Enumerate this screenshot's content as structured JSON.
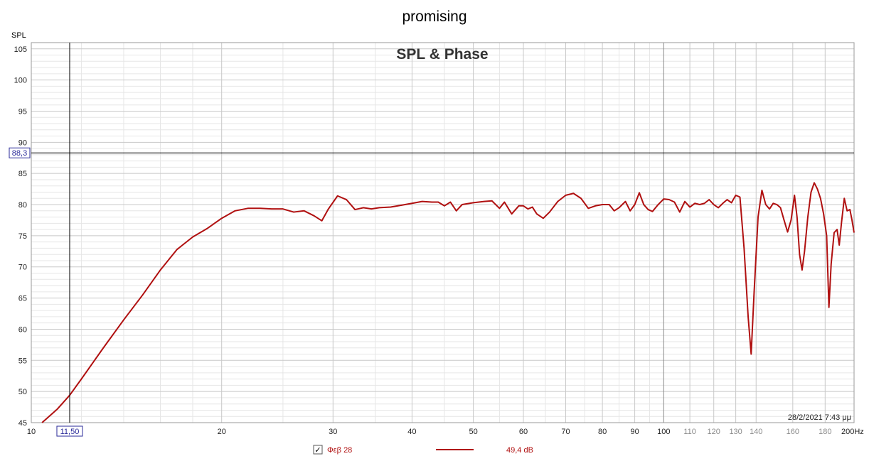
{
  "window_title": "promising",
  "plot_title": "SPL & Phase",
  "timestamp": "28/2/2021 7:43 μμ",
  "cursor": {
    "x_label": "11,50",
    "y_label": "88,3"
  },
  "legend": {
    "checked": true,
    "name": "Φεβ 28",
    "value": "49,4 dB",
    "color": "#b01010"
  },
  "colors": {
    "curve": "#b01010",
    "grid_major": "#c8c8c8",
    "grid_minor": "#e6e6e6",
    "frame": "#9a9a9a",
    "cursor": "#000000"
  },
  "chart_data": {
    "type": "line",
    "title": "SPL & Phase",
    "xlabel": "Hz",
    "ylabel": "SPL",
    "x_scale": "log",
    "xlim": [
      10,
      200
    ],
    "ylim": [
      45,
      106
    ],
    "grid": true,
    "x_ticks": [
      {
        "v": 10,
        "t": "10"
      },
      {
        "v": 20,
        "t": "20"
      },
      {
        "v": 30,
        "t": "30"
      },
      {
        "v": 40,
        "t": "40"
      },
      {
        "v": 50,
        "t": "50"
      },
      {
        "v": 60,
        "t": "60"
      },
      {
        "v": 70,
        "t": "70"
      },
      {
        "v": 80,
        "t": "80"
      },
      {
        "v": 90,
        "t": "90"
      },
      {
        "v": 100,
        "t": "100"
      },
      {
        "v": 110,
        "t": "110"
      },
      {
        "v": 120,
        "t": "120"
      },
      {
        "v": 130,
        "t": "130"
      },
      {
        "v": 140,
        "t": "140"
      },
      {
        "v": 160,
        "t": "160"
      },
      {
        "v": 180,
        "t": "180"
      },
      {
        "v": 200,
        "t": "200Hz"
      }
    ],
    "y_ticks": [
      45,
      50,
      55,
      60,
      65,
      70,
      75,
      80,
      85,
      90,
      95,
      100,
      105
    ],
    "series": [
      {
        "name": "Φεβ 28",
        "points": [
          [
            10.4,
            45.0
          ],
          [
            11.0,
            47.2
          ],
          [
            11.5,
            49.4
          ],
          [
            12.0,
            52.0
          ],
          [
            13.0,
            57.0
          ],
          [
            14.0,
            61.5
          ],
          [
            15.0,
            65.5
          ],
          [
            16.0,
            69.5
          ],
          [
            17.0,
            72.8
          ],
          [
            18.0,
            74.8
          ],
          [
            19.0,
            76.2
          ],
          [
            20.0,
            77.8
          ],
          [
            21.0,
            79.0
          ],
          [
            22.0,
            79.4
          ],
          [
            23.0,
            79.4
          ],
          [
            24.0,
            79.3
          ],
          [
            25.0,
            79.3
          ],
          [
            26.0,
            78.8
          ],
          [
            27.0,
            79.0
          ],
          [
            28.0,
            78.2
          ],
          [
            28.8,
            77.4
          ],
          [
            29.5,
            79.3
          ],
          [
            30.5,
            81.4
          ],
          [
            31.5,
            80.8
          ],
          [
            32.5,
            79.2
          ],
          [
            33.5,
            79.5
          ],
          [
            34.5,
            79.3
          ],
          [
            35.5,
            79.5
          ],
          [
            37.0,
            79.6
          ],
          [
            38.5,
            79.9
          ],
          [
            40.0,
            80.2
          ],
          [
            41.5,
            80.5
          ],
          [
            43.0,
            80.4
          ],
          [
            44.0,
            80.4
          ],
          [
            45.0,
            79.8
          ],
          [
            46.0,
            80.4
          ],
          [
            47.0,
            79.0
          ],
          [
            48.0,
            80.0
          ],
          [
            50.0,
            80.3
          ],
          [
            52.0,
            80.5
          ],
          [
            53.5,
            80.6
          ],
          [
            55.0,
            79.4
          ],
          [
            56.0,
            80.4
          ],
          [
            57.5,
            78.5
          ],
          [
            59.0,
            79.8
          ],
          [
            60.0,
            79.8
          ],
          [
            61.0,
            79.3
          ],
          [
            62.0,
            79.6
          ],
          [
            63.0,
            78.5
          ],
          [
            64.5,
            77.8
          ],
          [
            66.0,
            78.8
          ],
          [
            68.0,
            80.5
          ],
          [
            70.0,
            81.5
          ],
          [
            72.0,
            81.8
          ],
          [
            74.0,
            81.0
          ],
          [
            76.0,
            79.4
          ],
          [
            78.0,
            79.8
          ],
          [
            80.0,
            80.0
          ],
          [
            82.0,
            80.0
          ],
          [
            83.5,
            79.0
          ],
          [
            85.0,
            79.5
          ],
          [
            87.0,
            80.5
          ],
          [
            88.5,
            79.0
          ],
          [
            90.0,
            80.0
          ],
          [
            91.5,
            81.9
          ],
          [
            93.0,
            80.0
          ],
          [
            94.5,
            79.2
          ],
          [
            96.0,
            78.9
          ],
          [
            98.0,
            80.0
          ],
          [
            100.0,
            80.9
          ],
          [
            102.0,
            80.8
          ],
          [
            104.0,
            80.4
          ],
          [
            106.0,
            78.8
          ],
          [
            108.0,
            80.5
          ],
          [
            110.0,
            79.6
          ],
          [
            112.0,
            80.2
          ],
          [
            114.0,
            80.0
          ],
          [
            116.0,
            80.2
          ],
          [
            118.0,
            80.8
          ],
          [
            120.0,
            80.0
          ],
          [
            122.0,
            79.5
          ],
          [
            124.0,
            80.2
          ],
          [
            126.0,
            80.8
          ],
          [
            128.0,
            80.3
          ],
          [
            130.0,
            81.5
          ],
          [
            132.0,
            81.2
          ],
          [
            134.0,
            73.0
          ],
          [
            136.0,
            62.0
          ],
          [
            137.5,
            56.0
          ],
          [
            139.0,
            66.0
          ],
          [
            141.0,
            78.0
          ],
          [
            143.0,
            82.3
          ],
          [
            145.0,
            80.0
          ],
          [
            147.0,
            79.3
          ],
          [
            149.0,
            80.2
          ],
          [
            151.0,
            80.0
          ],
          [
            153.0,
            79.5
          ],
          [
            155.0,
            77.5
          ],
          [
            157.0,
            75.6
          ],
          [
            159.0,
            77.5
          ],
          [
            161.0,
            81.5
          ],
          [
            162.5,
            78.0
          ],
          [
            164.0,
            72.0
          ],
          [
            165.5,
            69.5
          ],
          [
            167.0,
            72.5
          ],
          [
            169.0,
            78.0
          ],
          [
            171.0,
            82.0
          ],
          [
            173.0,
            83.5
          ],
          [
            175.0,
            82.5
          ],
          [
            177.0,
            81.0
          ],
          [
            179.0,
            78.5
          ],
          [
            181.0,
            75.0
          ],
          [
            182.5,
            63.5
          ],
          [
            184.0,
            70.5
          ],
          [
            186.0,
            75.5
          ],
          [
            188.0,
            76.0
          ],
          [
            189.5,
            73.5
          ],
          [
            191.0,
            77.0
          ],
          [
            193.0,
            81.0
          ],
          [
            195.0,
            79.0
          ],
          [
            197.0,
            79.2
          ],
          [
            198.5,
            77.5
          ],
          [
            200.0,
            75.5
          ]
        ]
      }
    ]
  }
}
